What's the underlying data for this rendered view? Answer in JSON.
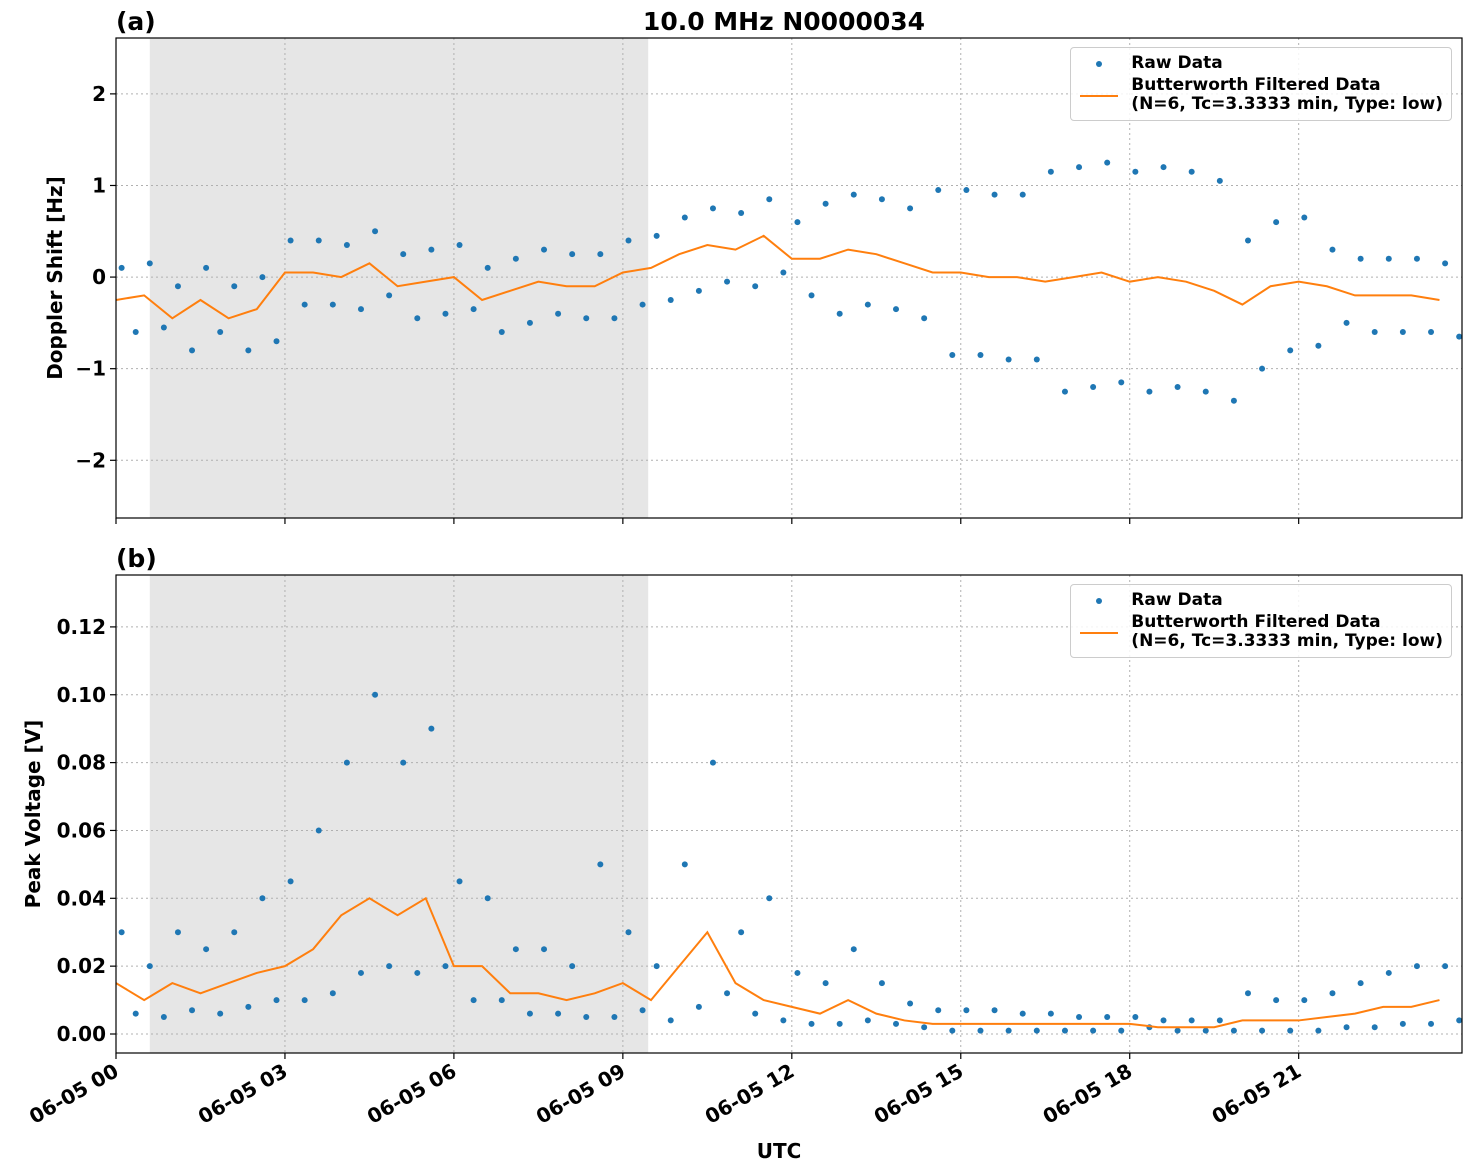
{
  "chart_data": [
    {
      "type": "line",
      "title": "10.0 MHz N0000034",
      "panel_label": "(a)",
      "ylabel": "Doppler Shift [Hz]",
      "xlim": [
        0,
        23.9
      ],
      "ylim": [
        -2.63,
        2.61
      ],
      "xticks": [
        0,
        3,
        6,
        9,
        12,
        15,
        18,
        21
      ],
      "yticks": [
        {
          "value": -2,
          "label": "−2"
        },
        {
          "value": -1,
          "label": "−1"
        },
        0,
        1,
        2
      ],
      "grid": true,
      "legend": "upper right",
      "shaded_span": [
        0.6,
        9.45
      ],
      "shade_color": "#e6e6e6",
      "series": [
        {
          "name": "Raw Data",
          "mode": "markers",
          "color": "#1f77b4",
          "x": [
            0.1,
            0.35,
            0.6,
            0.85,
            1.1,
            1.35,
            1.6,
            1.85,
            2.1,
            2.35,
            2.6,
            2.85,
            3.1,
            3.35,
            3.6,
            3.85,
            4.1,
            4.35,
            4.6,
            4.85,
            5.1,
            5.35,
            5.6,
            5.85,
            6.1,
            6.35,
            6.6,
            6.85,
            7.1,
            7.35,
            7.6,
            7.85,
            8.1,
            8.35,
            8.6,
            8.85,
            9.1,
            9.35,
            9.6,
            9.85,
            10.1,
            10.35,
            10.6,
            10.85,
            11.1,
            11.35,
            11.6,
            11.85,
            12.1,
            12.35,
            12.6,
            12.85,
            13.1,
            13.35,
            13.6,
            13.85,
            14.1,
            14.35,
            14.6,
            14.85,
            15.1,
            15.35,
            15.6,
            15.85,
            16.1,
            16.35,
            16.6,
            16.85,
            17.1,
            17.35,
            17.6,
            17.85,
            18.1,
            18.35,
            18.6,
            18.85,
            19.1,
            19.35,
            19.6,
            19.85,
            20.1,
            20.35,
            20.6,
            20.85,
            21.1,
            21.35,
            21.6,
            21.85,
            22.1,
            22.35,
            22.6,
            22.85,
            23.1,
            23.35,
            23.6,
            23.85
          ],
          "values": [
            0.1,
            -0.6,
            0.15,
            -0.55,
            -0.1,
            -0.8,
            0.1,
            -0.6,
            -0.1,
            -0.8,
            0.0,
            -0.7,
            0.4,
            -0.3,
            0.4,
            -0.3,
            0.35,
            -0.35,
            0.5,
            -0.2,
            0.25,
            -0.45,
            0.3,
            -0.4,
            0.35,
            -0.35,
            0.1,
            -0.6,
            0.2,
            -0.5,
            0.3,
            -0.4,
            0.25,
            -0.45,
            0.25,
            -0.45,
            0.4,
            -0.3,
            0.45,
            -0.25,
            0.65,
            -0.15,
            0.75,
            -0.05,
            0.7,
            -0.1,
            0.85,
            0.05,
            0.6,
            -0.2,
            0.8,
            -0.4,
            0.9,
            -0.3,
            0.85,
            -0.35,
            0.75,
            -0.45,
            0.95,
            -0.85,
            0.95,
            -0.85,
            0.9,
            -0.9,
            0.9,
            -0.9,
            1.15,
            -1.25,
            1.2,
            -1.2,
            1.25,
            -1.15,
            1.15,
            -1.25,
            1.2,
            -1.2,
            1.15,
            -1.25,
            1.05,
            -1.35,
            0.4,
            -1.0,
            0.6,
            -0.8,
            0.65,
            -0.75,
            0.3,
            -0.5,
            0.2,
            -0.6,
            0.2,
            -0.6,
            0.2,
            -0.6,
            0.15,
            -0.65
          ]
        },
        {
          "name": "Butterworth Filtered Data\n(N=6, Tc=3.3333 min, Type: low)",
          "mode": "line",
          "color": "#ff7f0e",
          "x": [
            0,
            0.5,
            1,
            1.5,
            2,
            2.5,
            3,
            3.5,
            4,
            4.5,
            5,
            5.5,
            6,
            6.5,
            7,
            7.5,
            8,
            8.5,
            9,
            9.5,
            10,
            10.5,
            11,
            11.5,
            12,
            12.5,
            13,
            13.5,
            14,
            14.5,
            15,
            15.5,
            16,
            16.5,
            17,
            17.5,
            18,
            18.5,
            19,
            19.5,
            20,
            20.5,
            21,
            21.5,
            22,
            22.5,
            23,
            23.5
          ],
          "values": [
            -0.25,
            -0.2,
            -0.45,
            -0.25,
            -0.45,
            -0.35,
            0.05,
            0.05,
            0.0,
            0.15,
            -0.1,
            -0.05,
            0.0,
            -0.25,
            -0.15,
            -0.05,
            -0.1,
            -0.1,
            0.05,
            0.1,
            0.25,
            0.35,
            0.3,
            0.45,
            0.2,
            0.2,
            0.3,
            0.25,
            0.15,
            0.05,
            0.05,
            0.0,
            0.0,
            -0.05,
            0.0,
            0.05,
            -0.05,
            0.0,
            -0.05,
            -0.15,
            -0.3,
            -0.1,
            -0.05,
            -0.1,
            -0.2,
            -0.2,
            -0.2,
            -0.25
          ]
        }
      ]
    },
    {
      "type": "line",
      "panel_label": "(b)",
      "ylabel": "Peak Voltage [V]",
      "xlabel": "UTC",
      "xlim": [
        0,
        23.9
      ],
      "ylim": [
        -0.0056,
        0.1353
      ],
      "xticks": [
        {
          "value": 0,
          "label": "06-05 00"
        },
        {
          "value": 3,
          "label": "06-05 03"
        },
        {
          "value": 6,
          "label": "06-05 06"
        },
        {
          "value": 9,
          "label": "06-05 09"
        },
        {
          "value": 12,
          "label": "06-05 12"
        },
        {
          "value": 15,
          "label": "06-05 15"
        },
        {
          "value": 18,
          "label": "06-05 18"
        },
        {
          "value": 21,
          "label": "06-05 21"
        }
      ],
      "yticks": [
        {
          "value": 0,
          "label": "0.00"
        },
        0.02,
        0.04,
        0.06,
        0.08,
        {
          "value": 0.1,
          "label": "0.10"
        },
        0.12
      ],
      "grid": true,
      "legend": "upper right",
      "shaded_span": [
        0.6,
        9.45
      ],
      "shade_color": "#e6e6e6",
      "series": [
        {
          "name": "Raw Data",
          "mode": "markers",
          "color": "#1f77b4",
          "x": [
            0.1,
            0.35,
            0.6,
            0.85,
            1.1,
            1.35,
            1.6,
            1.85,
            2.1,
            2.35,
            2.6,
            2.85,
            3.1,
            3.35,
            3.6,
            3.85,
            4.1,
            4.35,
            4.6,
            4.85,
            5.1,
            5.35,
            5.6,
            5.85,
            6.1,
            6.35,
            6.6,
            6.85,
            7.1,
            7.35,
            7.6,
            7.85,
            8.1,
            8.35,
            8.6,
            8.85,
            9.1,
            9.35,
            9.6,
            9.85,
            10.1,
            10.35,
            10.6,
            10.85,
            11.1,
            11.35,
            11.6,
            11.85,
            12.1,
            12.35,
            12.6,
            12.85,
            13.1,
            13.35,
            13.6,
            13.85,
            14.1,
            14.35,
            14.6,
            14.85,
            15.1,
            15.35,
            15.6,
            15.85,
            16.1,
            16.35,
            16.6,
            16.85,
            17.1,
            17.35,
            17.6,
            17.85,
            18.1,
            18.35,
            18.6,
            18.85,
            19.1,
            19.35,
            19.6,
            19.85,
            20.1,
            20.35,
            20.6,
            20.85,
            21.1,
            21.35,
            21.6,
            21.85,
            22.1,
            22.35,
            22.6,
            22.85,
            23.1,
            23.35,
            23.6,
            23.85
          ],
          "values": [
            0.03,
            0.006,
            0.02,
            0.005,
            0.03,
            0.007,
            0.025,
            0.006,
            0.03,
            0.008,
            0.04,
            0.01,
            0.045,
            0.01,
            0.06,
            0.012,
            0.08,
            0.018,
            0.1,
            0.02,
            0.08,
            0.018,
            0.09,
            0.02,
            0.045,
            0.01,
            0.04,
            0.01,
            0.025,
            0.006,
            0.025,
            0.006,
            0.02,
            0.005,
            0.05,
            0.005,
            0.03,
            0.007,
            0.02,
            0.004,
            0.05,
            0.008,
            0.08,
            0.012,
            0.03,
            0.006,
            0.04,
            0.004,
            0.018,
            0.003,
            0.015,
            0.003,
            0.025,
            0.004,
            0.015,
            0.003,
            0.009,
            0.002,
            0.007,
            0.001,
            0.007,
            0.001,
            0.007,
            0.001,
            0.006,
            0.001,
            0.006,
            0.001,
            0.005,
            0.001,
            0.005,
            0.001,
            0.005,
            0.002,
            0.004,
            0.001,
            0.004,
            0.001,
            0.004,
            0.001,
            0.012,
            0.001,
            0.01,
            0.001,
            0.01,
            0.001,
            0.012,
            0.002,
            0.015,
            0.002,
            0.018,
            0.003,
            0.02,
            0.003,
            0.02,
            0.004
          ]
        },
        {
          "name": "Butterworth Filtered Data\n(N=6, Tc=3.3333 min, Type: low)",
          "mode": "line",
          "color": "#ff7f0e",
          "x": [
            0,
            0.5,
            1,
            1.5,
            2,
            2.5,
            3,
            3.5,
            4,
            4.5,
            5,
            5.5,
            6,
            6.5,
            7,
            7.5,
            8,
            8.5,
            9,
            9.5,
            10,
            10.5,
            11,
            11.5,
            12,
            12.5,
            13,
            13.5,
            14,
            14.5,
            15,
            15.5,
            16,
            16.5,
            17,
            17.5,
            18,
            18.5,
            19,
            19.5,
            20,
            20.5,
            21,
            21.5,
            22,
            22.5,
            23,
            23.5
          ],
          "values": [
            0.015,
            0.01,
            0.015,
            0.012,
            0.015,
            0.018,
            0.02,
            0.025,
            0.035,
            0.04,
            0.035,
            0.04,
            0.02,
            0.02,
            0.012,
            0.012,
            0.01,
            0.012,
            0.015,
            0.01,
            0.02,
            0.03,
            0.015,
            0.01,
            0.008,
            0.006,
            0.01,
            0.006,
            0.004,
            0.003,
            0.003,
            0.003,
            0.003,
            0.003,
            0.003,
            0.003,
            0.003,
            0.002,
            0.002,
            0.002,
            0.004,
            0.004,
            0.004,
            0.005,
            0.006,
            0.008,
            0.008,
            0.01
          ]
        }
      ]
    }
  ]
}
